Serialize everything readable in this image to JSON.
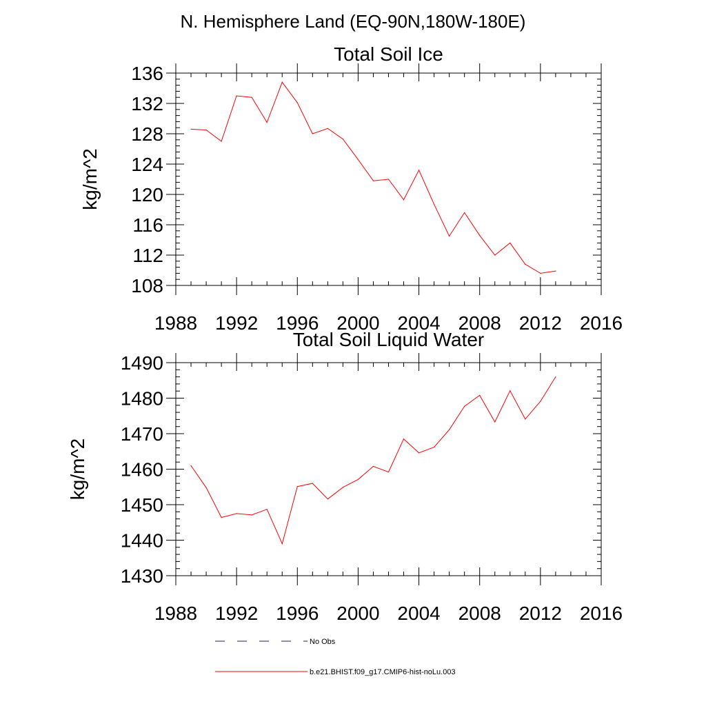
{
  "figure": {
    "title": "N. Hemisphere Land (EQ-90N,180W-180E)"
  },
  "colors": {
    "model_line": "#ff0000",
    "obs_line": "#1a1a5a",
    "axes": "#000000"
  },
  "legend": {
    "entries": [
      {
        "label": "No Obs",
        "style": "dashed",
        "color": "#1a1a5a"
      },
      {
        "label": "b.e21.BHIST.f09_g17.CMIP6-hist-noLu.003",
        "style": "solid",
        "color": "#ff0000"
      }
    ]
  },
  "chart_data": [
    {
      "type": "line",
      "title": "Total Soil Ice",
      "xlabel": "",
      "ylabel": "kg/m^2",
      "xlim": [
        1988,
        2016
      ],
      "ylim": [
        108,
        136
      ],
      "xticks": [
        1988,
        1992,
        1996,
        2000,
        2004,
        2008,
        2012,
        2016
      ],
      "yticks": [
        108,
        112,
        116,
        120,
        124,
        128,
        132,
        136
      ],
      "x": [
        1989,
        1990,
        1991,
        1992,
        1993,
        1994,
        1995,
        1996,
        1997,
        1998,
        1999,
        2000,
        2001,
        2002,
        2003,
        2004,
        2005,
        2006,
        2007,
        2008,
        2009,
        2010,
        2011,
        2012,
        2013
      ],
      "series": [
        {
          "name": "b.e21.BHIST.f09_g17.CMIP6-hist-noLu.003",
          "values": [
            128.6,
            128.5,
            127.0,
            133.0,
            132.8,
            129.5,
            134.8,
            132.1,
            128.0,
            128.7,
            127.3,
            124.6,
            121.8,
            122.0,
            119.3,
            123.2,
            118.7,
            114.5,
            117.6,
            114.6,
            112.0,
            113.6,
            110.8,
            109.6,
            109.9
          ]
        }
      ]
    },
    {
      "type": "line",
      "title": "Total Soil Liquid Water",
      "xlabel": "",
      "ylabel": "kg/m^2",
      "xlim": [
        1988,
        2016
      ],
      "ylim": [
        1430,
        1490
      ],
      "xticks": [
        1988,
        1992,
        1996,
        2000,
        2004,
        2008,
        2012,
        2016
      ],
      "yticks": [
        1430,
        1440,
        1450,
        1460,
        1470,
        1480,
        1490
      ],
      "x": [
        1989,
        1990,
        1991,
        1992,
        1993,
        1994,
        1995,
        1996,
        1997,
        1998,
        1999,
        2000,
        2001,
        2002,
        2003,
        2004,
        2005,
        2006,
        2007,
        2008,
        2009,
        2010,
        2011,
        2012,
        2013
      ],
      "series": [
        {
          "name": "b.e21.BHIST.f09_g17.CMIP6-hist-noLu.003",
          "values": [
            1461.0,
            1454.8,
            1446.4,
            1447.5,
            1447.1,
            1448.7,
            1439.0,
            1455.1,
            1456.0,
            1451.6,
            1454.9,
            1457.1,
            1460.8,
            1459.2,
            1468.5,
            1464.6,
            1466.2,
            1471.1,
            1477.7,
            1480.8,
            1473.3,
            1482.1,
            1474.1,
            1479.1,
            1486.0
          ]
        }
      ]
    }
  ]
}
